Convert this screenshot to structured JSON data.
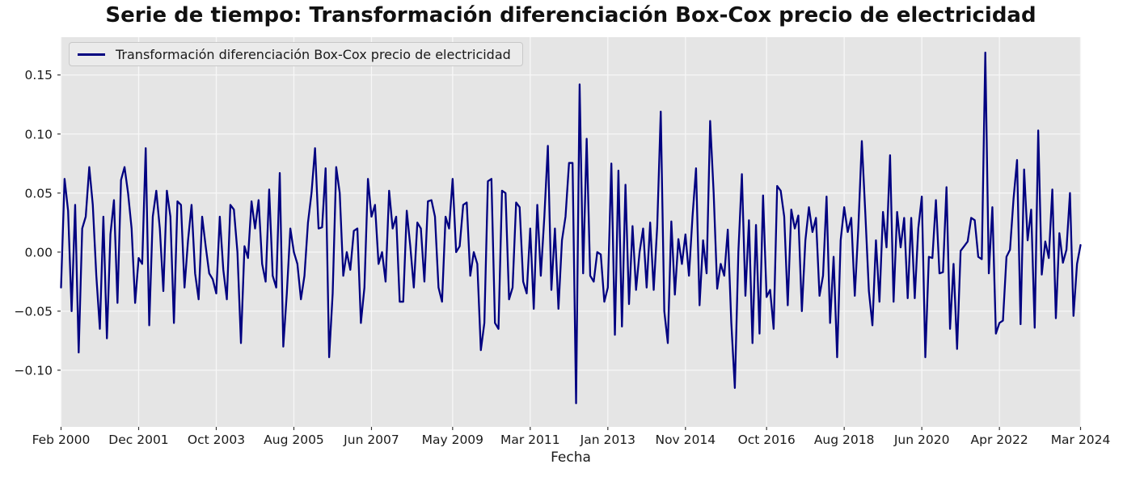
{
  "title": "Serie de tiempo: Transformación diferenciación Box-Cox precio de electricidad",
  "legend": {
    "label": "Transformación diferenciación Box-Cox precio de electricidad"
  },
  "xlabel": "Fecha",
  "colors": {
    "line": "#000080",
    "plot_background": "#e5e5e5",
    "grid": "#f7f7f7",
    "tick": "#333333",
    "text": "#1a1a1a"
  },
  "chart_data": {
    "type": "line",
    "title": "Serie de tiempo: Transformación diferenciación Box-Cox precio de electricidad",
    "xlabel": "Fecha",
    "ylabel": "",
    "legend_entries": [
      "Transformación diferenciación Box-Cox precio de electricidad"
    ],
    "legend_position": "upper left",
    "grid": true,
    "x_frequency": "monthly",
    "x_start": "Feb 2000",
    "x_end": "Mar 2024",
    "xtick_labels": [
      "Feb 2000",
      "Dec 2001",
      "Oct 2003",
      "Aug 2005",
      "Jun 2007",
      "May 2009",
      "Mar 2011",
      "Jan 2013",
      "Nov 2014",
      "Oct 2016",
      "Aug 2018",
      "Jun 2020",
      "Apr 2022",
      "Mar 2024"
    ],
    "xtick_month_index": [
      0,
      22,
      44,
      66,
      88,
      111,
      133,
      155,
      177,
      200,
      222,
      244,
      266,
      289
    ],
    "ytick_labels": [
      "0.15",
      "0.10",
      "0.05",
      "0.00",
      "−0.05",
      "−0.10"
    ],
    "ytick_values": [
      0.15,
      0.1,
      0.05,
      0.0,
      -0.05,
      -0.1
    ],
    "ylim": [
      -0.148,
      0.182
    ],
    "n_points": 290,
    "values": [
      -0.03,
      0.062,
      0.035,
      -0.05,
      0.04,
      -0.085,
      0.02,
      0.03,
      0.072,
      0.04,
      -0.02,
      -0.065,
      0.03,
      -0.073,
      0.015,
      0.044,
      -0.043,
      0.061,
      0.072,
      0.05,
      0.02,
      -0.043,
      -0.005,
      -0.01,
      0.088,
      -0.062,
      0.03,
      0.052,
      0.02,
      -0.033,
      0.052,
      0.03,
      -0.06,
      0.043,
      0.04,
      -0.03,
      0.01,
      0.04,
      -0.018,
      -0.04,
      0.03,
      0.005,
      -0.018,
      -0.023,
      -0.035,
      0.03,
      -0.015,
      -0.04,
      0.04,
      0.036,
      0.0,
      -0.077,
      0.005,
      -0.005,
      0.043,
      0.02,
      0.044,
      -0.01,
      -0.025,
      0.053,
      -0.02,
      -0.03,
      0.067,
      -0.08,
      -0.035,
      0.02,
      0.0,
      -0.01,
      -0.04,
      -0.02,
      0.025,
      0.05,
      0.088,
      0.02,
      0.021,
      0.071,
      -0.089,
      -0.035,
      0.072,
      0.05,
      -0.02,
      0.0,
      -0.015,
      0.018,
      0.02,
      -0.06,
      -0.03,
      0.062,
      0.03,
      0.04,
      -0.01,
      0.0,
      -0.025,
      0.052,
      0.02,
      0.03,
      -0.042,
      -0.042,
      0.035,
      0.005,
      -0.03,
      0.025,
      0.02,
      -0.025,
      0.043,
      0.044,
      0.03,
      -0.03,
      -0.042,
      0.03,
      0.02,
      0.062,
      0.0,
      0.005,
      0.04,
      0.042,
      -0.02,
      0.0,
      -0.01,
      -0.083,
      -0.06,
      0.06,
      0.062,
      -0.06,
      -0.065,
      0.052,
      0.05,
      -0.04,
      -0.03,
      0.042,
      0.038,
      -0.025,
      -0.035,
      0.02,
      -0.048,
      0.04,
      -0.02,
      0.03,
      0.09,
      -0.032,
      0.02,
      -0.048,
      0.01,
      0.03,
      0.0755,
      0.0755,
      -0.128,
      0.142,
      -0.018,
      0.096,
      -0.02,
      -0.025,
      0.0,
      -0.002,
      -0.042,
      -0.03,
      0.075,
      -0.07,
      0.069,
      -0.063,
      0.057,
      -0.044,
      0.022,
      -0.032,
      0.0,
      0.02,
      -0.03,
      0.025,
      -0.032,
      0.022,
      0.119,
      -0.05,
      -0.077,
      0.026,
      -0.036,
      0.011,
      -0.01,
      0.015,
      -0.02,
      0.03,
      0.071,
      -0.045,
      0.01,
      -0.018,
      0.111,
      0.05,
      -0.031,
      -0.01,
      -0.02,
      0.019,
      -0.06,
      -0.115,
      0.0,
      0.066,
      -0.037,
      0.027,
      -0.077,
      0.023,
      -0.069,
      0.048,
      -0.038,
      -0.032,
      -0.065,
      0.056,
      0.052,
      0.03,
      -0.045,
      0.036,
      0.02,
      0.031,
      -0.05,
      0.01,
      0.038,
      0.017,
      0.029,
      -0.037,
      -0.02,
      0.047,
      -0.06,
      -0.004,
      -0.089,
      0.01,
      0.038,
      0.017,
      0.029,
      -0.037,
      0.02,
      0.094,
      0.032,
      -0.033,
      -0.062,
      0.01,
      -0.042,
      0.034,
      0.004,
      0.082,
      -0.042,
      0.034,
      0.004,
      0.029,
      -0.039,
      0.029,
      -0.039,
      0.02,
      0.047,
      -0.089,
      -0.004,
      -0.005,
      0.044,
      -0.018,
      -0.017,
      0.055,
      -0.065,
      -0.01,
      -0.082,
      0.001,
      0.005,
      0.009,
      0.029,
      0.027,
      -0.004,
      -0.006,
      0.169,
      -0.018,
      0.038,
      -0.069,
      -0.06,
      -0.058,
      -0.004,
      0.002,
      0.045,
      0.078,
      -0.061,
      0.07,
      0.01,
      0.036,
      -0.064,
      0.103,
      -0.019,
      0.009,
      -0.005,
      0.053,
      -0.056,
      0.016,
      -0.009,
      0.002,
      0.05,
      -0.054,
      -0.01,
      0.006
    ]
  }
}
